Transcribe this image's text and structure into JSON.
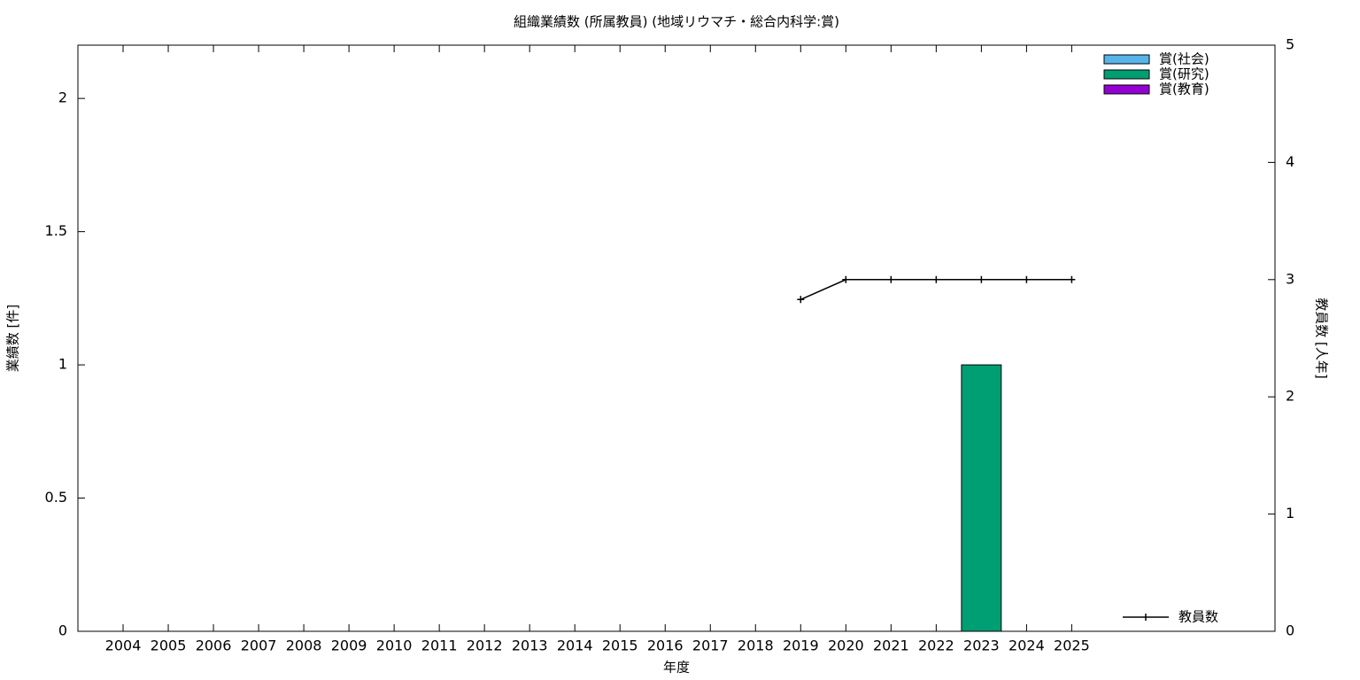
{
  "chart_data": {
    "type": "bar",
    "title": "組織業績数 (所属教員) (地域リウマチ・総合内科学:賞)",
    "x_label": "年度",
    "y_label": "業績数 [件]",
    "y2_label": "教員数 [人年]",
    "categories": [
      "2004",
      "2005",
      "2006",
      "2007",
      "2008",
      "2009",
      "2010",
      "2011",
      "2012",
      "2013",
      "2014",
      "2015",
      "2016",
      "2017",
      "2018",
      "2019",
      "2020",
      "2021",
      "2022",
      "2023",
      "2024",
      "2025"
    ],
    "series": [
      {
        "name": "賞(社会)",
        "color": "#56b4e9",
        "values": [
          0,
          0,
          0,
          0,
          0,
          0,
          0,
          0,
          0,
          0,
          0,
          0,
          0,
          0,
          0,
          0,
          0,
          0,
          0,
          0,
          0,
          0
        ]
      },
      {
        "name": "賞(研究)",
        "color": "#009e73",
        "values": [
          0,
          0,
          0,
          0,
          0,
          0,
          0,
          0,
          0,
          0,
          0,
          0,
          0,
          0,
          0,
          0,
          0,
          0,
          0,
          1,
          0,
          0
        ]
      },
      {
        "name": "賞(教育)",
        "color": "#9400d3",
        "values": [
          0,
          0,
          0,
          0,
          0,
          0,
          0,
          0,
          0,
          0,
          0,
          0,
          0,
          0,
          0,
          0,
          0,
          0,
          0,
          0,
          0,
          0
        ]
      },
      {
        "name": "教員数",
        "type": "line",
        "axis": "y2",
        "color": "#000000",
        "values": [
          null,
          null,
          null,
          null,
          null,
          null,
          null,
          null,
          null,
          null,
          null,
          null,
          null,
          null,
          null,
          2.83,
          3,
          3,
          3,
          3,
          3,
          3
        ]
      }
    ],
    "stacked": true,
    "ylim": [
      0,
      2.2
    ],
    "yticks": [
      0,
      0.5,
      1,
      1.5,
      2
    ],
    "y2lim": [
      0,
      5
    ],
    "y2ticks": [
      0,
      1,
      2,
      3,
      4,
      5
    ],
    "grid": false
  }
}
